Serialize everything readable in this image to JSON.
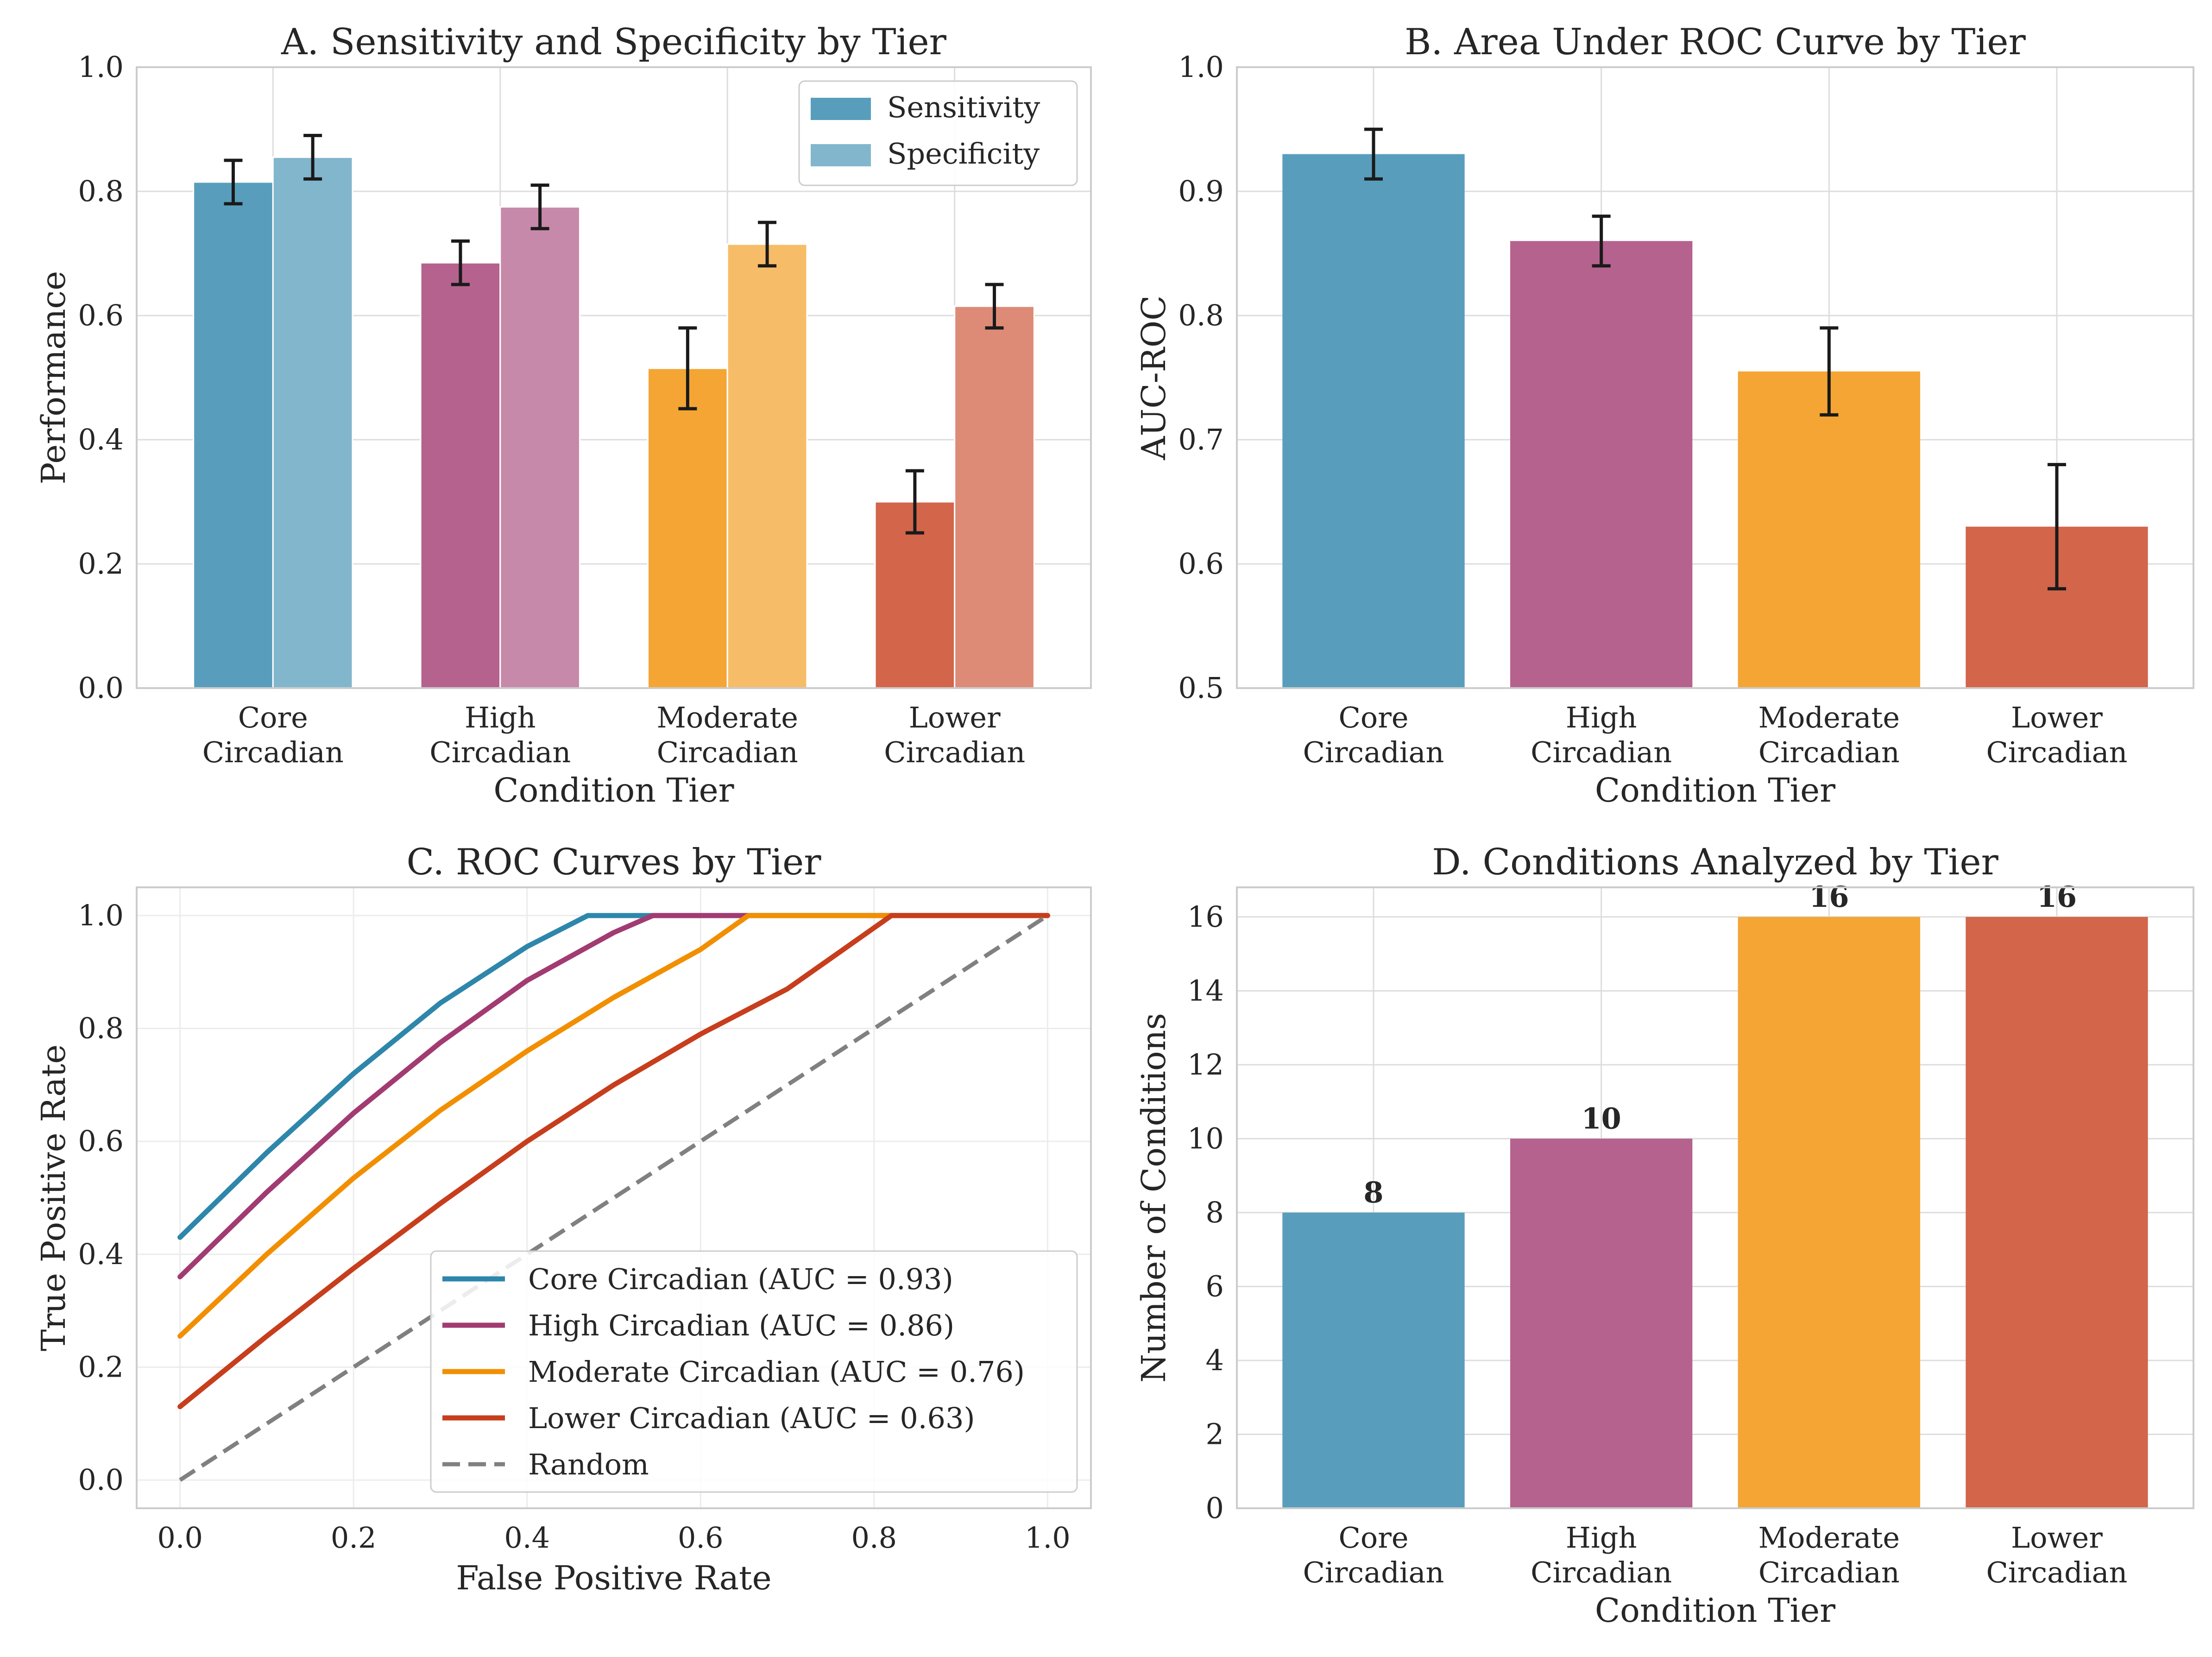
{
  "colors": {
    "core": "#2E86AB",
    "high": "#A23B72",
    "moderate": "#F18F01",
    "lower": "#C73E1D",
    "random": "#808080",
    "grid": "#dddddd",
    "spine": "#cccccc",
    "errorbar": "#1a1a1a"
  },
  "chart_data": [
    {
      "id": "A",
      "type": "bar",
      "title": "A. Sensitivity and Specificity by Tier",
      "xlabel": "Condition Tier",
      "ylabel": "Performance",
      "categories": [
        [
          "Core",
          "Circadian"
        ],
        [
          "High",
          "Circadian"
        ],
        [
          "Moderate",
          "Circadian"
        ],
        [
          "Lower",
          "Circadian"
        ]
      ],
      "ylim": [
        0,
        1.0
      ],
      "yticks": [
        "0.0",
        "0.2",
        "0.4",
        "0.6",
        "0.8",
        "1.0"
      ],
      "grid": true,
      "legend": "top-right",
      "series": [
        {
          "name": "Sensitivity",
          "values": [
            0.815,
            0.685,
            0.515,
            0.3
          ],
          "errors": [
            0.035,
            0.035,
            0.065,
            0.05
          ]
        },
        {
          "name": "Specificity",
          "values": [
            0.855,
            0.775,
            0.715,
            0.615
          ],
          "errors": [
            0.035,
            0.035,
            0.035,
            0.035
          ]
        }
      ]
    },
    {
      "id": "B",
      "type": "bar",
      "title": "B. Area Under ROC Curve by Tier",
      "xlabel": "Condition Tier",
      "ylabel": "AUC-ROC",
      "categories": [
        [
          "Core",
          "Circadian"
        ],
        [
          "High",
          "Circadian"
        ],
        [
          "Moderate",
          "Circadian"
        ],
        [
          "Lower",
          "Circadian"
        ]
      ],
      "ylim": [
        0.5,
        1.0
      ],
      "yticks": [
        "0.5",
        "0.6",
        "0.7",
        "0.8",
        "0.9",
        "1.0"
      ],
      "grid": true,
      "values": [
        0.93,
        0.86,
        0.755,
        0.63
      ],
      "errors": [
        0.02,
        0.02,
        0.035,
        0.05
      ]
    },
    {
      "id": "C",
      "type": "line",
      "title": "C. ROC Curves by Tier",
      "xlabel": "False Positive Rate",
      "ylabel": "True Positive Rate",
      "xlim": [
        -0.05,
        1.05
      ],
      "ylim": [
        -0.05,
        1.05
      ],
      "xticks": [
        "0.0",
        "0.2",
        "0.4",
        "0.6",
        "0.8",
        "1.0"
      ],
      "yticks": [
        "0.0",
        "0.2",
        "0.4",
        "0.6",
        "0.8",
        "1.0"
      ],
      "grid": true,
      "legend": "lower-right",
      "series": [
        {
          "name": "Core Circadian (AUC = 0.93)",
          "x": [
            0,
            0.1,
            0.2,
            0.3,
            0.4,
            0.47,
            0.5,
            1.0
          ],
          "y": [
            0.43,
            0.58,
            0.72,
            0.845,
            0.945,
            1.0,
            1.0,
            1.0
          ]
        },
        {
          "name": "High Circadian (AUC = 0.86)",
          "x": [
            0,
            0.1,
            0.2,
            0.3,
            0.4,
            0.5,
            0.545,
            0.6,
            1.0
          ],
          "y": [
            0.36,
            0.51,
            0.65,
            0.775,
            0.885,
            0.97,
            1.0,
            1.0,
            1.0
          ]
        },
        {
          "name": "Moderate Circadian (AUC = 0.76)",
          "x": [
            0,
            0.1,
            0.2,
            0.3,
            0.4,
            0.5,
            0.6,
            0.655,
            0.7,
            1.0
          ],
          "y": [
            0.255,
            0.4,
            0.535,
            0.655,
            0.76,
            0.855,
            0.94,
            1.0,
            1.0,
            1.0
          ]
        },
        {
          "name": "Lower Circadian (AUC = 0.63)",
          "x": [
            0,
            0.1,
            0.2,
            0.3,
            0.4,
            0.5,
            0.6,
            0.7,
            0.82,
            0.9,
            1.0
          ],
          "y": [
            0.13,
            0.255,
            0.375,
            0.49,
            0.6,
            0.7,
            0.79,
            0.87,
            1.0,
            1.0,
            1.0
          ]
        },
        {
          "name": "Random",
          "x": [
            0,
            1
          ],
          "y": [
            0,
            1
          ],
          "dashed": true
        }
      ]
    },
    {
      "id": "D",
      "type": "bar",
      "title": "D. Conditions Analyzed by Tier",
      "xlabel": "Condition Tier",
      "ylabel": "Number of Conditions",
      "categories": [
        [
          "Core",
          "Circadian"
        ],
        [
          "High",
          "Circadian"
        ],
        [
          "Moderate",
          "Circadian"
        ],
        [
          "Lower",
          "Circadian"
        ]
      ],
      "ylim": [
        0,
        16.8
      ],
      "yticks": [
        "0",
        "2",
        "4",
        "6",
        "8",
        "10",
        "12",
        "14",
        "16"
      ],
      "grid": true,
      "values": [
        8,
        10,
        16,
        16
      ],
      "value_labels": [
        "8",
        "10",
        "16",
        "16"
      ]
    }
  ]
}
